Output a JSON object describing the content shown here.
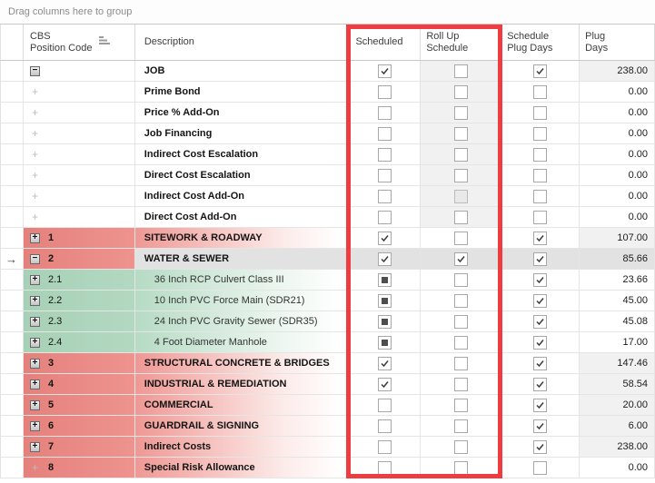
{
  "group_bar": {
    "label": "Drag columns here to group"
  },
  "header": {
    "cbs": "CBS\nPosition Code",
    "description": "Description",
    "scheduled": "Scheduled",
    "roll_up": "Roll Up\nSchedule",
    "schedule_plug_days": "Schedule\nPlug Days",
    "plug_days": "Plug\nDays"
  },
  "icons": {
    "expand_glyph": "+",
    "collapse_glyph": "−",
    "row_arrow_glyph": "→",
    "sort_icon": "sort-ascending"
  },
  "colors": {
    "superitem_pink": "#e9837e",
    "item_green": "#aad4ba",
    "highlight_red": "#ee3c41",
    "selected_gray": "#e2e2e2",
    "readonly_gray": "#f1f1f1"
  },
  "highlight": {
    "columns": [
      "Scheduled",
      "Roll Up Schedule"
    ]
  },
  "rows": [
    {
      "code": "",
      "desc": "JOB",
      "color": "none",
      "icon": "collapse",
      "bold": true,
      "indent": 0,
      "selected": false,
      "scheduled": "checked",
      "rollup": "unchecked",
      "rollup_shaded": true,
      "sched_plug": "checked",
      "plug": "238.00",
      "plug_shaded": true
    },
    {
      "code": "",
      "desc": "Prime Bond",
      "color": "none",
      "icon": "plus-plain",
      "bold": true,
      "indent": 0,
      "selected": false,
      "scheduled": "unchecked",
      "rollup": "unchecked",
      "rollup_shaded": true,
      "sched_plug": "unchecked",
      "plug": "0.00",
      "plug_shaded": false
    },
    {
      "code": "",
      "desc": "Price % Add-On",
      "color": "none",
      "icon": "plus-plain",
      "bold": true,
      "indent": 0,
      "selected": false,
      "scheduled": "unchecked",
      "rollup": "unchecked",
      "rollup_shaded": true,
      "sched_plug": "unchecked",
      "plug": "0.00",
      "plug_shaded": false
    },
    {
      "code": "",
      "desc": "Job Financing",
      "color": "none",
      "icon": "plus-plain",
      "bold": true,
      "indent": 0,
      "selected": false,
      "scheduled": "unchecked",
      "rollup": "unchecked",
      "rollup_shaded": true,
      "sched_plug": "unchecked",
      "plug": "0.00",
      "plug_shaded": false
    },
    {
      "code": "",
      "desc": "Indirect Cost Escalation",
      "color": "none",
      "icon": "plus-plain",
      "bold": true,
      "indent": 0,
      "selected": false,
      "scheduled": "unchecked",
      "rollup": "unchecked",
      "rollup_shaded": true,
      "sched_plug": "unchecked",
      "plug": "0.00",
      "plug_shaded": false
    },
    {
      "code": "",
      "desc": "Direct Cost Escalation",
      "color": "none",
      "icon": "plus-plain",
      "bold": true,
      "indent": 0,
      "selected": false,
      "scheduled": "unchecked",
      "rollup": "unchecked",
      "rollup_shaded": true,
      "sched_plug": "unchecked",
      "plug": "0.00",
      "plug_shaded": false
    },
    {
      "code": "",
      "desc": "Indirect Cost Add-On",
      "color": "none",
      "icon": "plus-plain",
      "bold": true,
      "indent": 0,
      "selected": false,
      "scheduled": "unchecked",
      "rollup": "disabled",
      "rollup_shaded": true,
      "sched_plug": "unchecked",
      "plug": "0.00",
      "plug_shaded": false
    },
    {
      "code": "",
      "desc": "Direct Cost Add-On",
      "color": "none",
      "icon": "plus-plain",
      "bold": true,
      "indent": 0,
      "selected": false,
      "scheduled": "unchecked",
      "rollup": "unchecked",
      "rollup_shaded": true,
      "sched_plug": "unchecked",
      "plug": "0.00",
      "plug_shaded": false
    },
    {
      "code": "1",
      "desc": "SITEWORK & ROADWAY",
      "color": "pink",
      "icon": "expand",
      "bold": true,
      "indent": 0,
      "selected": false,
      "scheduled": "checked",
      "rollup": "unchecked",
      "rollup_shaded": false,
      "sched_plug": "checked",
      "plug": "107.00",
      "plug_shaded": true
    },
    {
      "code": "2",
      "desc": "WATER & SEWER",
      "color": "pink",
      "icon": "collapse",
      "bold": true,
      "indent": 0,
      "selected": true,
      "scheduled": "checked",
      "rollup": "checked",
      "rollup_shaded": false,
      "sched_plug": "checked",
      "plug": "85.66",
      "plug_shaded": true
    },
    {
      "code": "2.1",
      "desc": "36 Inch RCP Culvert Class III",
      "color": "green",
      "icon": "expand",
      "bold": false,
      "indent": 1,
      "selected": false,
      "scheduled": "indeterminate",
      "rollup": "unchecked",
      "rollup_shaded": false,
      "sched_plug": "checked",
      "plug": "23.66",
      "plug_shaded": false
    },
    {
      "code": "2.2",
      "desc": "10 Inch PVC Force Main (SDR21)",
      "color": "green",
      "icon": "expand",
      "bold": false,
      "indent": 1,
      "selected": false,
      "scheduled": "indeterminate",
      "rollup": "unchecked",
      "rollup_shaded": false,
      "sched_plug": "checked",
      "plug": "45.00",
      "plug_shaded": false
    },
    {
      "code": "2.3",
      "desc": "24 Inch PVC Gravity Sewer (SDR35)",
      "color": "green",
      "icon": "expand",
      "bold": false,
      "indent": 1,
      "selected": false,
      "scheduled": "indeterminate",
      "rollup": "unchecked",
      "rollup_shaded": false,
      "sched_plug": "checked",
      "plug": "45.08",
      "plug_shaded": false
    },
    {
      "code": "2.4",
      "desc": "4 Foot Diameter Manhole",
      "color": "green",
      "icon": "expand",
      "bold": false,
      "indent": 1,
      "selected": false,
      "scheduled": "indeterminate",
      "rollup": "unchecked",
      "rollup_shaded": false,
      "sched_plug": "checked",
      "plug": "17.00",
      "plug_shaded": false
    },
    {
      "code": "3",
      "desc": "STRUCTURAL CONCRETE & BRIDGES",
      "color": "pink",
      "icon": "expand",
      "bold": true,
      "indent": 0,
      "selected": false,
      "scheduled": "checked",
      "rollup": "unchecked",
      "rollup_shaded": false,
      "sched_plug": "checked",
      "plug": "147.46",
      "plug_shaded": true
    },
    {
      "code": "4",
      "desc": "INDUSTRIAL & REMEDIATION",
      "color": "pink",
      "icon": "expand",
      "bold": true,
      "indent": 0,
      "selected": false,
      "scheduled": "checked",
      "rollup": "unchecked",
      "rollup_shaded": false,
      "sched_plug": "checked",
      "plug": "58.54",
      "plug_shaded": true
    },
    {
      "code": "5",
      "desc": "COMMERCIAL",
      "color": "pink",
      "icon": "expand",
      "bold": true,
      "indent": 0,
      "selected": false,
      "scheduled": "unchecked",
      "rollup": "unchecked",
      "rollup_shaded": false,
      "sched_plug": "checked",
      "plug": "20.00",
      "plug_shaded": true
    },
    {
      "code": "6",
      "desc": "GUARDRAIL & SIGNING",
      "color": "pink",
      "icon": "expand",
      "bold": true,
      "indent": 0,
      "selected": false,
      "scheduled": "unchecked",
      "rollup": "unchecked",
      "rollup_shaded": false,
      "sched_plug": "checked",
      "plug": "6.00",
      "plug_shaded": true
    },
    {
      "code": "7",
      "desc": "Indirect Costs",
      "color": "pink",
      "icon": "expand",
      "bold": true,
      "indent": 0,
      "selected": false,
      "scheduled": "unchecked",
      "rollup": "unchecked",
      "rollup_shaded": false,
      "sched_plug": "checked",
      "plug": "238.00",
      "plug_shaded": true
    },
    {
      "code": "8",
      "desc": "Special Risk Allowance",
      "color": "pink",
      "icon": "plus-plain",
      "bold": true,
      "indent": 0,
      "selected": false,
      "scheduled": "unchecked",
      "rollup": "unchecked",
      "rollup_shaded": false,
      "sched_plug": "unchecked",
      "plug": "0.00",
      "plug_shaded": false
    }
  ]
}
